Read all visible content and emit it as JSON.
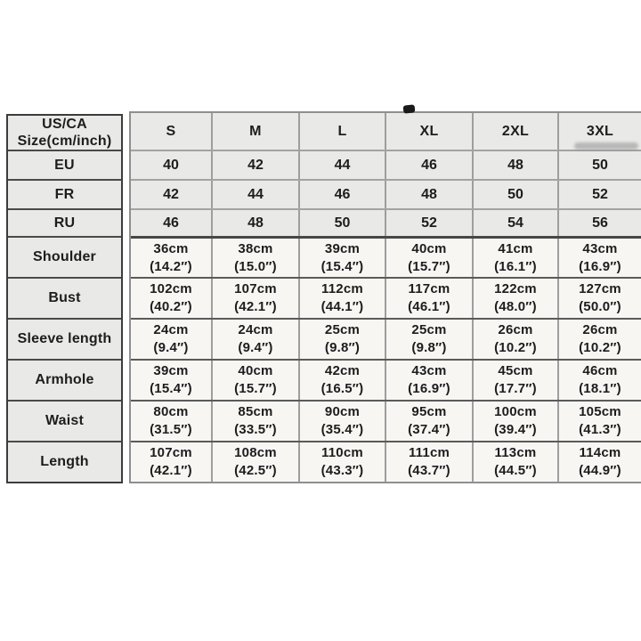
{
  "colors": {
    "band_bg": "#e9e9e8",
    "cell_bg": "#f7f6f3",
    "label_border": "#3c3c3c",
    "grid_border": "#9e9e9e",
    "dark_separator": "#5a5a5a",
    "text": "#1d1d1d"
  },
  "table": {
    "corner": {
      "line1": "US/CA",
      "line2": "Size(cm/inch)"
    },
    "size_columns": [
      "S",
      "M",
      "L",
      "XL",
      "2XL",
      "3XL"
    ],
    "region_rows": [
      {
        "label": "EU",
        "values": [
          "40",
          "42",
          "44",
          "46",
          "48",
          "50"
        ]
      },
      {
        "label": "FR",
        "values": [
          "42",
          "44",
          "46",
          "48",
          "50",
          "52"
        ]
      },
      {
        "label": "RU",
        "values": [
          "46",
          "48",
          "50",
          "52",
          "54",
          "56"
        ]
      }
    ],
    "measurement_rows": [
      {
        "label": "Shoulder",
        "cells": [
          {
            "cm": "36cm",
            "in": "(14.2″)"
          },
          {
            "cm": "38cm",
            "in": "(15.0″)"
          },
          {
            "cm": "39cm",
            "in": "(15.4″)"
          },
          {
            "cm": "40cm",
            "in": "(15.7″)"
          },
          {
            "cm": "41cm",
            "in": "(16.1″)"
          },
          {
            "cm": "43cm",
            "in": "(16.9″)"
          }
        ]
      },
      {
        "label": "Bust",
        "cells": [
          {
            "cm": "102cm",
            "in": "(40.2″)"
          },
          {
            "cm": "107cm",
            "in": "(42.1″)"
          },
          {
            "cm": "112cm",
            "in": "(44.1″)"
          },
          {
            "cm": "117cm",
            "in": "(46.1″)"
          },
          {
            "cm": "122cm",
            "in": "(48.0″)"
          },
          {
            "cm": "127cm",
            "in": "(50.0″)"
          }
        ]
      },
      {
        "label": "Sleeve length",
        "cells": [
          {
            "cm": "24cm",
            "in": "(9.4″)"
          },
          {
            "cm": "24cm",
            "in": "(9.4″)"
          },
          {
            "cm": "25cm",
            "in": "(9.8″)"
          },
          {
            "cm": "25cm",
            "in": "(9.8″)"
          },
          {
            "cm": "26cm",
            "in": "(10.2″)"
          },
          {
            "cm": "26cm",
            "in": "(10.2″)"
          }
        ]
      },
      {
        "label": "Armhole",
        "cells": [
          {
            "cm": "39cm",
            "in": "(15.4″)"
          },
          {
            "cm": "40cm",
            "in": "(15.7″)"
          },
          {
            "cm": "42cm",
            "in": "(16.5″)"
          },
          {
            "cm": "43cm",
            "in": "(16.9″)"
          },
          {
            "cm": "45cm",
            "in": "(17.7″)"
          },
          {
            "cm": "46cm",
            "in": "(18.1″)"
          }
        ]
      },
      {
        "label": "Waist",
        "cells": [
          {
            "cm": "80cm",
            "in": "(31.5″)"
          },
          {
            "cm": "85cm",
            "in": "(33.5″)"
          },
          {
            "cm": "90cm",
            "in": "(35.4″)"
          },
          {
            "cm": "95cm",
            "in": "(37.4″)"
          },
          {
            "cm": "100cm",
            "in": "(39.4″)"
          },
          {
            "cm": "105cm",
            "in": "(41.3″)"
          }
        ]
      },
      {
        "label": "Length",
        "cells": [
          {
            "cm": "107cm",
            "in": "(42.1″)"
          },
          {
            "cm": "108cm",
            "in": "(42.5″)"
          },
          {
            "cm": "110cm",
            "in": "(43.3″)"
          },
          {
            "cm": "111cm",
            "in": "(43.7″)"
          },
          {
            "cm": "113cm",
            "in": "(44.5″)"
          },
          {
            "cm": "114cm",
            "in": "(44.9″)"
          }
        ]
      }
    ]
  },
  "chart_data": {
    "type": "table",
    "title": "US/CA Size(cm/inch)",
    "columns": [
      "US/CA Size(cm/inch)",
      "S",
      "M",
      "L",
      "XL",
      "2XL",
      "3XL"
    ],
    "rows": [
      [
        "EU",
        "40",
        "42",
        "44",
        "46",
        "48",
        "50"
      ],
      [
        "FR",
        "42",
        "44",
        "46",
        "48",
        "50",
        "52"
      ],
      [
        "RU",
        "46",
        "48",
        "50",
        "52",
        "54",
        "56"
      ],
      [
        "Shoulder",
        "36cm (14.2″)",
        "38cm (15.0″)",
        "39cm (15.4″)",
        "40cm (15.7″)",
        "41cm (16.1″)",
        "43cm (16.9″)"
      ],
      [
        "Bust",
        "102cm (40.2″)",
        "107cm (42.1″)",
        "112cm (44.1″)",
        "117cm (46.1″)",
        "122cm (48.0″)",
        "127cm (50.0″)"
      ],
      [
        "Sleeve length",
        "24cm (9.4″)",
        "24cm (9.4″)",
        "25cm (9.8″)",
        "25cm (9.8″)",
        "26cm (10.2″)",
        "26cm (10.2″)"
      ],
      [
        "Armhole",
        "39cm (15.4″)",
        "40cm (15.7″)",
        "42cm (16.5″)",
        "43cm (16.9″)",
        "45cm (17.7″)",
        "46cm (18.1″)"
      ],
      [
        "Waist",
        "80cm (31.5″)",
        "85cm (33.5″)",
        "90cm (35.4″)",
        "95cm (37.4″)",
        "100cm (39.4″)",
        "105cm (41.3″)"
      ],
      [
        "Length",
        "107cm (42.1″)",
        "108cm (42.5″)",
        "110cm (43.3″)",
        "111cm (43.7″)",
        "113cm (44.5″)",
        "114cm (44.9″)"
      ]
    ],
    "layout": {
      "grid": true,
      "header_band_rows": 4,
      "background": "#ffffff"
    }
  }
}
